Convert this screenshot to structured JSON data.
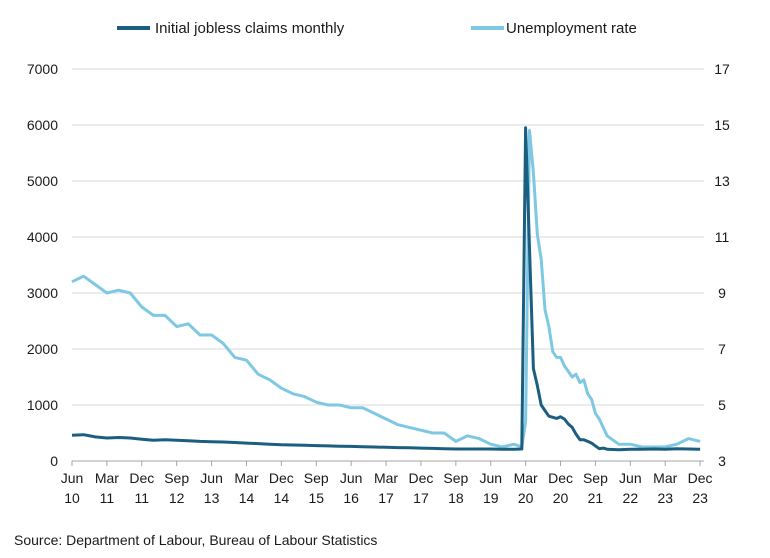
{
  "chart_data": {
    "type": "line",
    "legend_position": "top",
    "grid": "horizontal",
    "colors": {
      "claims": "#1b5e80",
      "unemployment": "#7ec8e3",
      "grid": "#d9d9d9"
    },
    "series": [
      {
        "name": "Initial jobless claims monthly",
        "axis": "left",
        "x": [
          "2010-06",
          "2010-09",
          "2010-12",
          "2011-03",
          "2011-06",
          "2011-09",
          "2011-12",
          "2012-03",
          "2012-06",
          "2012-09",
          "2012-12",
          "2013-03",
          "2013-06",
          "2013-09",
          "2013-12",
          "2014-03",
          "2014-06",
          "2014-09",
          "2014-12",
          "2015-03",
          "2015-06",
          "2015-09",
          "2015-12",
          "2016-03",
          "2016-06",
          "2016-09",
          "2016-12",
          "2017-03",
          "2017-06",
          "2017-09",
          "2017-12",
          "2018-03",
          "2018-06",
          "2018-09",
          "2018-12",
          "2019-03",
          "2019-06",
          "2019-09",
          "2019-12",
          "2020-02",
          "2020-03",
          "2020-04",
          "2020-05",
          "2020-06",
          "2020-07",
          "2020-08",
          "2020-09",
          "2020-10",
          "2020-11",
          "2020-12",
          "2021-01",
          "2021-02",
          "2021-03",
          "2021-04",
          "2021-05",
          "2021-06",
          "2021-07",
          "2021-08",
          "2021-09",
          "2021-10",
          "2021-11",
          "2021-12",
          "2022-03",
          "2022-06",
          "2022-09",
          "2022-12",
          "2023-03",
          "2023-06",
          "2023-09",
          "2023-12"
        ],
        "values": [
          460,
          470,
          430,
          410,
          420,
          410,
          390,
          370,
          380,
          370,
          360,
          350,
          345,
          340,
          330,
          320,
          310,
          300,
          290,
          285,
          280,
          275,
          270,
          265,
          260,
          255,
          250,
          245,
          240,
          235,
          230,
          225,
          220,
          215,
          215,
          215,
          215,
          210,
          210,
          215,
          5950,
          3800,
          1650,
          1350,
          1000,
          900,
          800,
          780,
          760,
          790,
          750,
          660,
          600,
          480,
          380,
          380,
          350,
          320,
          270,
          220,
          230,
          210,
          200,
          210,
          210,
          215,
          210,
          220,
          215,
          210
        ]
      },
      {
        "name": "Unemployment rate",
        "axis": "right",
        "x": [
          "2010-06",
          "2010-09",
          "2010-12",
          "2011-03",
          "2011-06",
          "2011-09",
          "2011-12",
          "2012-03",
          "2012-06",
          "2012-09",
          "2012-12",
          "2013-03",
          "2013-06",
          "2013-09",
          "2013-12",
          "2014-03",
          "2014-06",
          "2014-09",
          "2014-12",
          "2015-03",
          "2015-06",
          "2015-09",
          "2015-12",
          "2016-03",
          "2016-06",
          "2016-09",
          "2016-12",
          "2017-03",
          "2017-06",
          "2017-09",
          "2017-12",
          "2018-03",
          "2018-06",
          "2018-09",
          "2018-12",
          "2019-03",
          "2019-06",
          "2019-09",
          "2019-12",
          "2020-02",
          "2020-03",
          "2020-04",
          "2020-05",
          "2020-06",
          "2020-07",
          "2020-08",
          "2020-09",
          "2020-10",
          "2020-11",
          "2020-12",
          "2021-01",
          "2021-02",
          "2021-03",
          "2021-04",
          "2021-05",
          "2021-06",
          "2021-07",
          "2021-08",
          "2021-09",
          "2021-10",
          "2021-11",
          "2021-12",
          "2022-03",
          "2022-06",
          "2022-09",
          "2022-12",
          "2023-03",
          "2023-06",
          "2023-09",
          "2023-12"
        ],
        "values": [
          9.4,
          9.6,
          9.3,
          9.0,
          9.1,
          9.0,
          8.5,
          8.2,
          8.2,
          7.8,
          7.9,
          7.5,
          7.5,
          7.2,
          6.7,
          6.6,
          6.1,
          5.9,
          5.6,
          5.4,
          5.3,
          5.1,
          5.0,
          5.0,
          4.9,
          4.9,
          4.7,
          4.5,
          4.3,
          4.2,
          4.1,
          4.0,
          4.0,
          3.7,
          3.9,
          3.8,
          3.6,
          3.5,
          3.6,
          3.5,
          4.4,
          14.8,
          13.3,
          11.1,
          10.2,
          8.4,
          7.8,
          6.9,
          6.7,
          6.7,
          6.4,
          6.2,
          6.0,
          6.1,
          5.8,
          5.9,
          5.4,
          5.2,
          4.7,
          4.5,
          4.2,
          3.9,
          3.6,
          3.6,
          3.5,
          3.5,
          3.5,
          3.6,
          3.8,
          3.7
        ]
      }
    ],
    "y_left": {
      "min": 0,
      "max": 7000,
      "ticks": [
        "0",
        "1000",
        "2000",
        "3000",
        "4000",
        "5000",
        "6000",
        "7000"
      ]
    },
    "y_right": {
      "min": 3,
      "max": 17,
      "ticks": [
        "3",
        "5",
        "7",
        "9",
        "11",
        "13",
        "15",
        "17"
      ]
    },
    "x_range": [
      "2010-06",
      "2024-01"
    ],
    "x_ticks": [
      {
        "x": "2010-06",
        "month": "Jun",
        "year": "10"
      },
      {
        "x": "2011-03",
        "month": "Mar",
        "year": "11"
      },
      {
        "x": "2011-12",
        "month": "Dec",
        "year": "11"
      },
      {
        "x": "2012-09",
        "month": "Sep",
        "year": "12"
      },
      {
        "x": "2013-06",
        "month": "Jun",
        "year": "13"
      },
      {
        "x": "2014-03",
        "month": "Mar",
        "year": "14"
      },
      {
        "x": "2014-12",
        "month": "Dec",
        "year": "14"
      },
      {
        "x": "2015-09",
        "month": "Sep",
        "year": "15"
      },
      {
        "x": "2016-06",
        "month": "Jun",
        "year": "16"
      },
      {
        "x": "2017-03",
        "month": "Mar",
        "year": "17"
      },
      {
        "x": "2017-12",
        "month": "Dec",
        "year": "17"
      },
      {
        "x": "2018-09",
        "month": "Sep",
        "year": "18"
      },
      {
        "x": "2019-06",
        "month": "Jun",
        "year": "19"
      },
      {
        "x": "2020-03",
        "month": "Mar",
        "year": "20"
      },
      {
        "x": "2020-12",
        "month": "Dec",
        "year": "20"
      },
      {
        "x": "2021-09",
        "month": "Sep",
        "year": "21"
      },
      {
        "x": "2022-06",
        "month": "Jun",
        "year": "22"
      },
      {
        "x": "2023-03",
        "month": "Mar",
        "year": "23"
      },
      {
        "x": "2023-12",
        "month": "Dec",
        "year": "23"
      }
    ],
    "source": "Source: Department of Labour, Bureau of Labour Statistics"
  }
}
